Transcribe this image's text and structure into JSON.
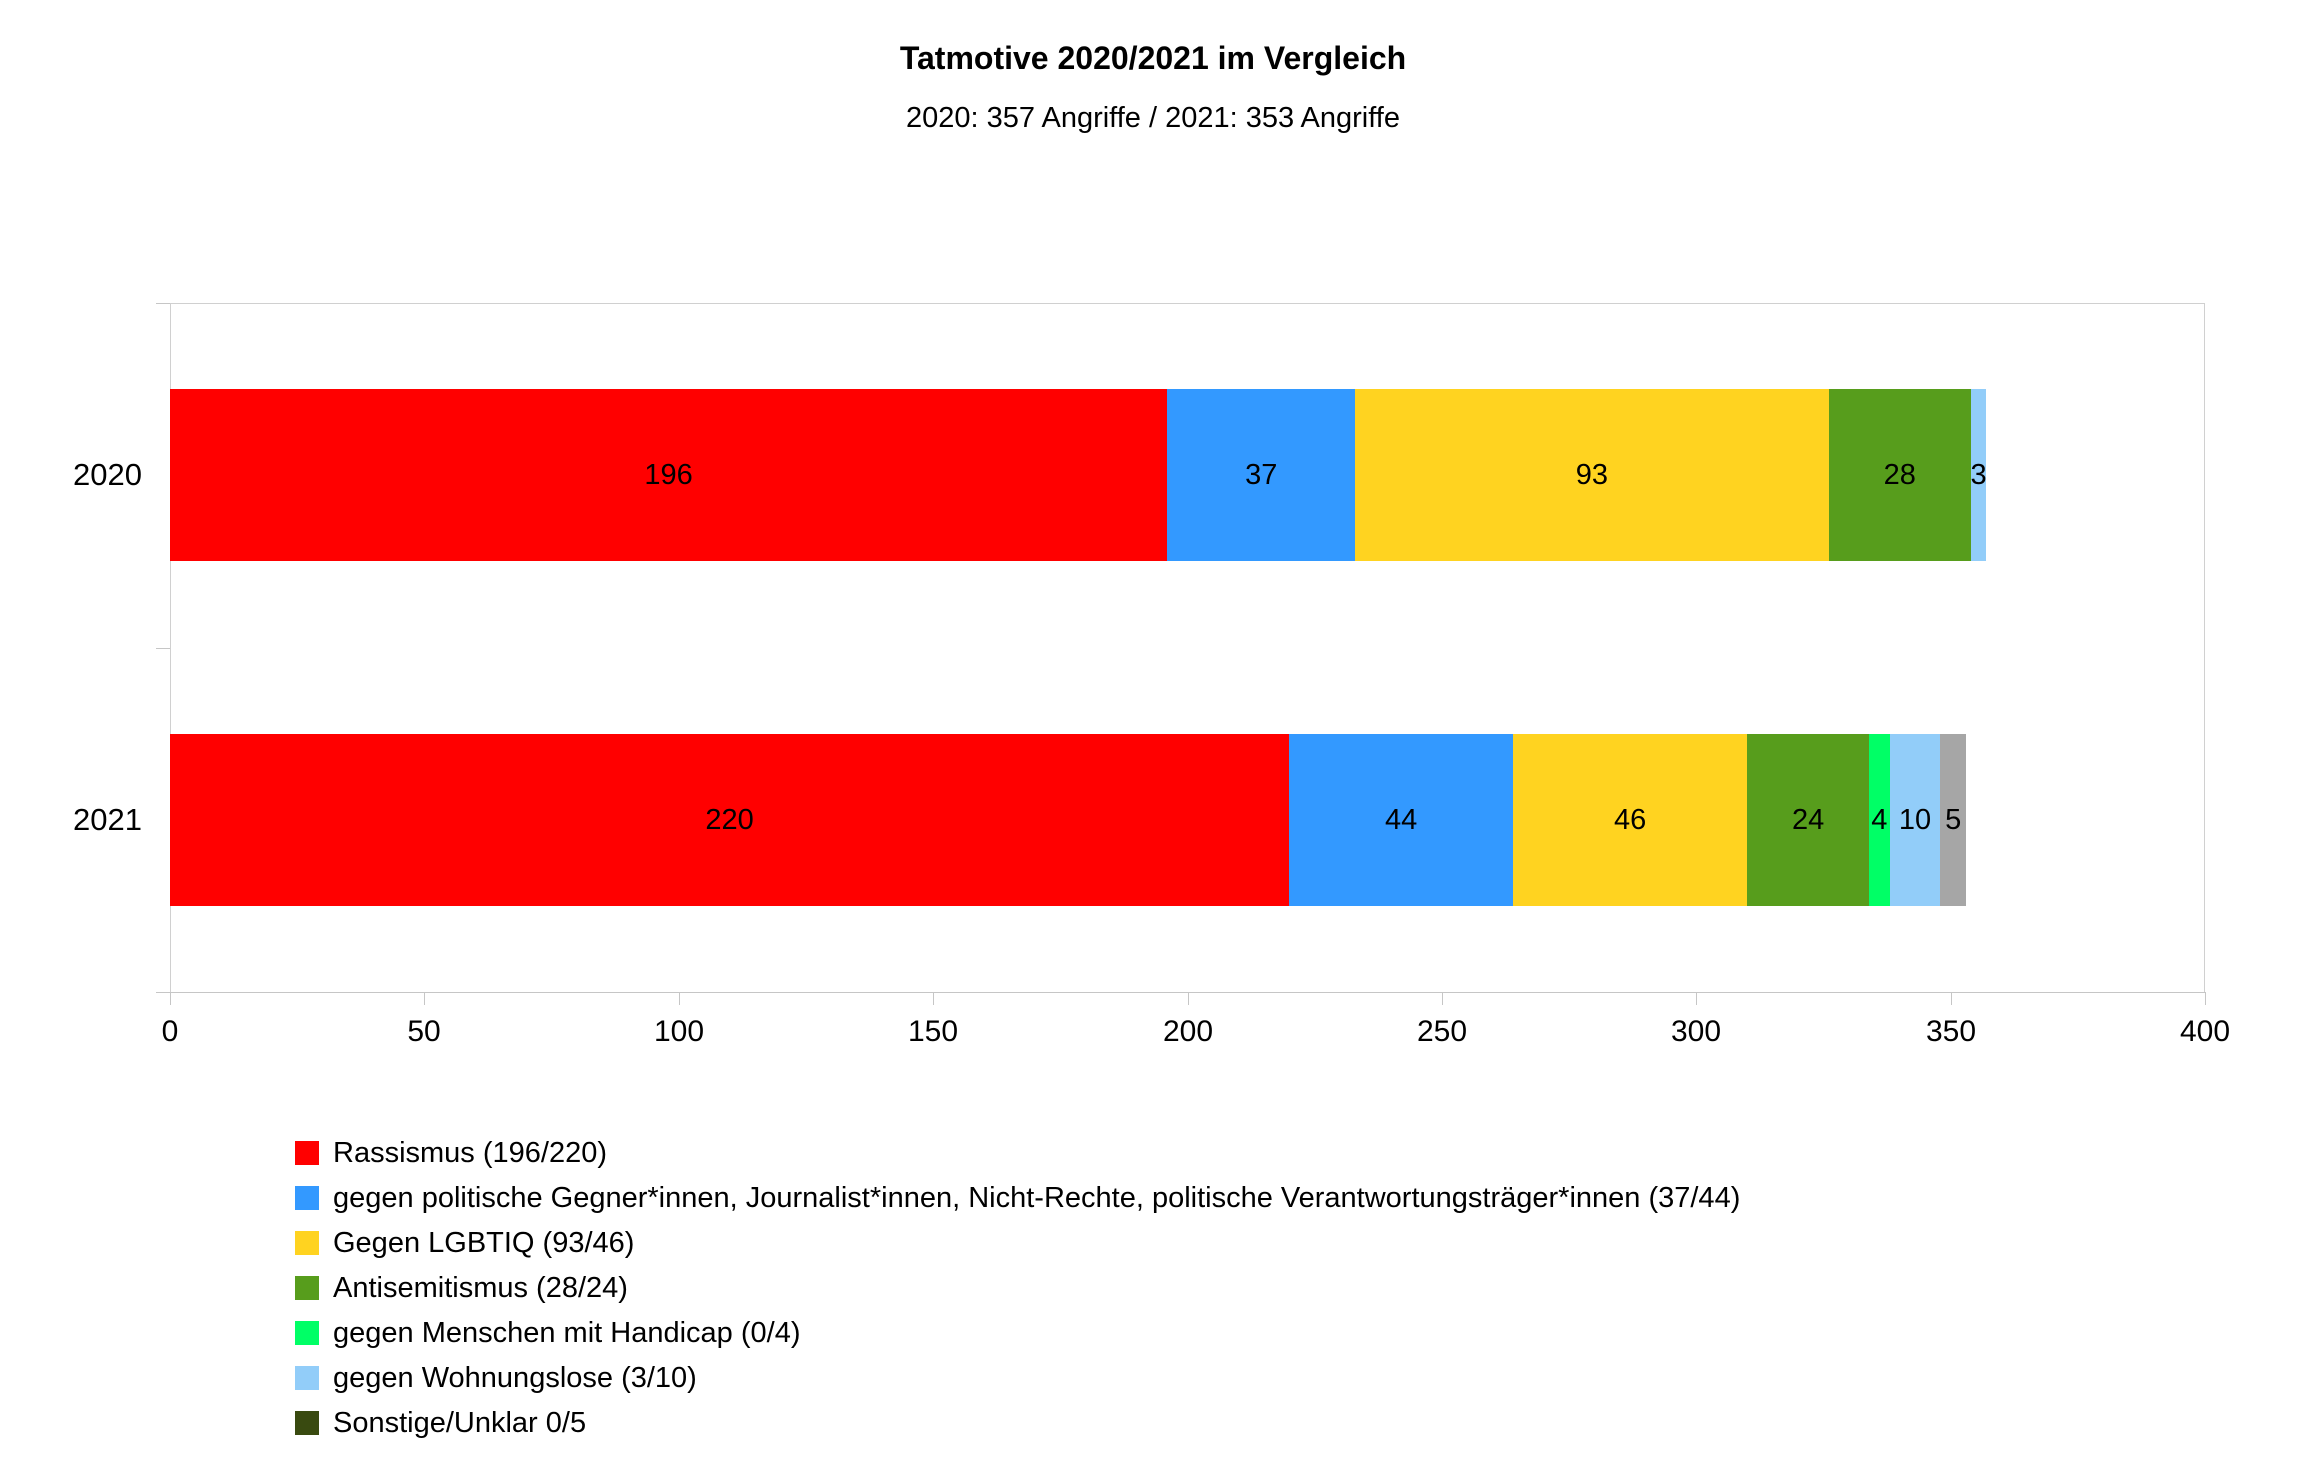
{
  "title": "Tatmotive 2020/2021 im Vergleich",
  "subtitle": "2020: 357 Angriffe / 2021: 353 Angriffe",
  "chart_data": {
    "type": "bar",
    "orientation": "horizontal",
    "stacked": true,
    "title": "Tatmotive 2020/2021 im Vergleich",
    "subtitle": "2020: 357 Angriffe / 2021: 353 Angriffe",
    "categories": [
      "2020",
      "2021"
    ],
    "totals": [
      357,
      353
    ],
    "series": [
      {
        "name": "Rassismus (196/220)",
        "color": "#ff0000",
        "values": [
          196,
          220
        ]
      },
      {
        "name": "gegen politische Gegner*innen, Journalist*innen, Nicht-Rechte, politische Verantwortungsträger*innen (37/44)",
        "color": "#3399ff",
        "values": [
          37,
          44
        ]
      },
      {
        "name": "Gegen LGBTIQ (93/46)",
        "color": "#ffd320",
        "values": [
          93,
          46
        ]
      },
      {
        "name": "Antisemitismus (28/24)",
        "color": "#579d1c",
        "values": [
          28,
          24
        ]
      },
      {
        "name": "gegen Menschen mit Handicap (0/4)",
        "color": "#00ff66",
        "values": [
          0,
          4
        ]
      },
      {
        "name": "gegen Wohnungslose (3/10)",
        "color": "#92cdf9",
        "values": [
          3,
          10
        ]
      },
      {
        "name": "Sonstige/Unklar 0/5",
        "color": "#a6a6a6",
        "legend_color": "#394a10",
        "values": [
          0,
          5
        ]
      }
    ],
    "xlim": [
      0,
      400
    ],
    "x_ticks": [
      0,
      50,
      100,
      150,
      200,
      250,
      300,
      350,
      400
    ],
    "grid": false,
    "legend_position": "bottom-left",
    "value_labels": "shown for non-zero segments"
  }
}
